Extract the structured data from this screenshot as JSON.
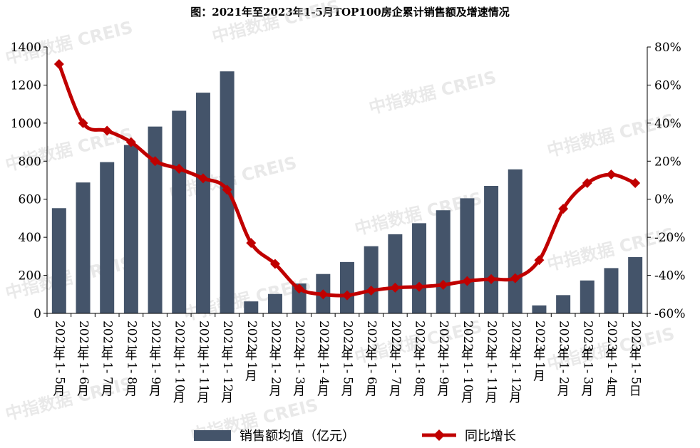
{
  "title": "图：2021年至2023年1-5月TOP100房企累计销售额及增速情况",
  "watermark": "中指数据 CREIS",
  "legend": {
    "bar_label": "销售额均值（亿元）",
    "line_label": "同比增长"
  },
  "colors": {
    "bar": "#44546a",
    "line": "#c00000"
  },
  "chart_data": {
    "type": "bar",
    "categories": [
      "2021年1-5月",
      "2021年1-6月",
      "2021年1-7月",
      "2021年1-8月",
      "2021年1-9月",
      "2021年1-10月",
      "2021年1-11月",
      "2021年1-12月",
      "2022年1月",
      "2022年1-2月",
      "2022年1-3月",
      "2022年1-4月",
      "2022年1-5月",
      "2022年1-6月",
      "2022年1-7月",
      "2022年1-8月",
      "2022年1-9月",
      "2022年1-10月",
      "2022年1-11月",
      "2022年1-12月",
      "2023年1月",
      "2023年1-2月",
      "2023年1-3月",
      "2023年1-4月",
      "2023年1-5日"
    ],
    "series": [
      {
        "name": "销售额均值（亿元）",
        "axis": "left",
        "type": "bar",
        "values": [
          553,
          688,
          795,
          885,
          982,
          1065,
          1160,
          1272,
          63,
          102,
          157,
          207,
          270,
          353,
          416,
          474,
          542,
          605,
          670,
          757,
          42,
          96,
          173,
          238,
          296
        ]
      },
      {
        "name": "同比增长",
        "axis": "right",
        "type": "line",
        "unit": "%",
        "values": [
          71,
          40,
          36,
          30,
          20,
          16,
          11,
          5,
          -23,
          -34,
          -47,
          -50,
          -50.5,
          -48,
          -46.5,
          -46,
          -45,
          -43,
          -42,
          -41.5,
          -32,
          -5,
          8.5,
          13,
          8.5
        ]
      }
    ],
    "y_left": {
      "ylim": [
        0,
        1400
      ],
      "ticks": [
        "0",
        "200",
        "400",
        "600",
        "800",
        "1000",
        "1200",
        "1400"
      ]
    },
    "y_right": {
      "ylim": [
        -60,
        80
      ],
      "ticks": [
        "-60%",
        "-40%",
        "-20%",
        "0%",
        "20%",
        "40%",
        "60%",
        "80%"
      ]
    },
    "grid": false,
    "legend_position": "bottom"
  }
}
